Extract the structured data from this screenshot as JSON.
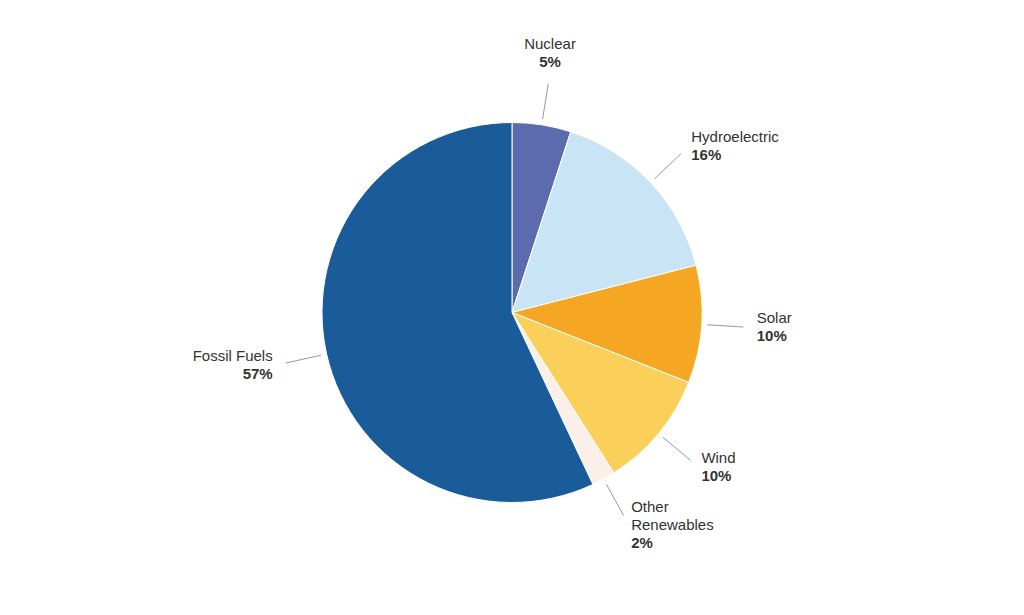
{
  "chart_data": {
    "type": "pie",
    "categories": [
      "Nuclear",
      "Hydroelectric",
      "Solar",
      "Wind",
      "Other\nRenewables",
      "Fossil Fuels"
    ],
    "values": [
      5,
      16,
      10,
      10,
      2,
      57
    ],
    "value_labels": [
      "5%",
      "16%",
      "10%",
      "10%",
      "2%",
      "57%"
    ],
    "colors": [
      "#5B6BAE",
      "#C9E5F5",
      "#F5A623",
      "#FAD05A",
      "#FAF0E8",
      "#1A5C99"
    ]
  }
}
